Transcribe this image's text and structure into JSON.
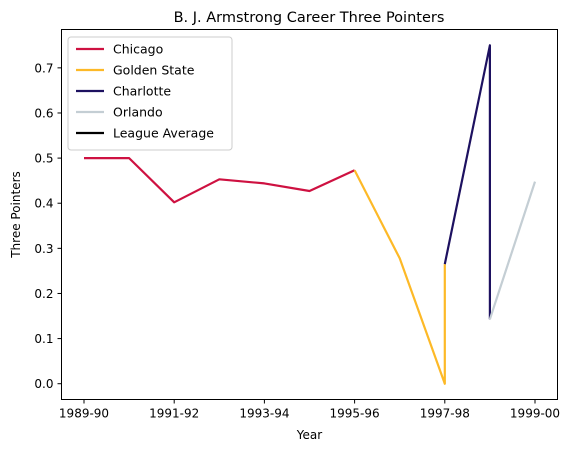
{
  "chart_data": {
    "type": "line",
    "title": "B. J. Armstrong Career Three Pointers",
    "xlabel": "Year",
    "ylabel": "Three Pointers",
    "x_labels": [
      "1989-90",
      "1990-91",
      "1991-92",
      "1992-93",
      "1993-94",
      "1994-95",
      "1995-96",
      "1996-97",
      "1997-98",
      "1998-99",
      "1999-00"
    ],
    "x_tick_labels": [
      "1989-90",
      "1991-92",
      "1993-94",
      "1995-96",
      "1997-98",
      "1999-00"
    ],
    "y_ticks": [
      "0.0",
      "0.1",
      "0.2",
      "0.3",
      "0.4",
      "0.5",
      "0.6",
      "0.7"
    ],
    "ylim": [
      -0.035,
      0.785
    ],
    "grid": false,
    "legend_position": "top-left",
    "series": [
      {
        "name": "Chicago",
        "color": "#CE1141",
        "points": [
          [
            "1989-90",
            0.5
          ],
          [
            "1990-91",
            0.5
          ],
          [
            "1991-92",
            0.402
          ],
          [
            "1992-93",
            0.453
          ],
          [
            "1993-94",
            0.444
          ],
          [
            "1994-95",
            0.427
          ],
          [
            "1995-96",
            0.473
          ]
        ]
      },
      {
        "name": "Golden State",
        "color": "#FDB927",
        "points": [
          [
            "1995-96",
            0.473
          ],
          [
            "1996-97",
            0.278
          ],
          [
            "1997-98",
            0.0
          ],
          [
            "1997-98",
            0.265
          ]
        ]
      },
      {
        "name": "Charlotte",
        "color": "#1D1160",
        "points": [
          [
            "1997-98",
            0.265
          ],
          [
            "1998-99",
            0.75
          ],
          [
            "1998-99",
            0.143
          ]
        ]
      },
      {
        "name": "Orlando",
        "color": "#C4CED4",
        "points": [
          [
            "1998-99",
            0.143
          ],
          [
            "1999-00",
            0.448
          ]
        ]
      },
      {
        "name": "League Average",
        "color": "#000000",
        "points": []
      }
    ]
  }
}
